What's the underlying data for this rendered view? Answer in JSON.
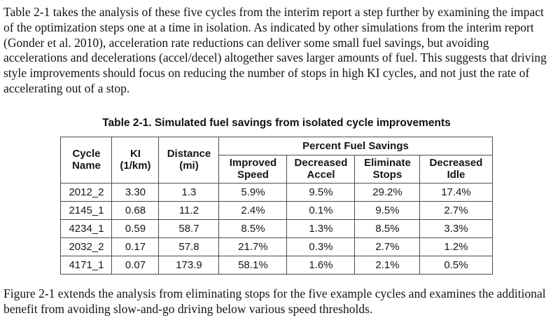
{
  "document": {
    "intro_paragraph": "Table 2-1 takes the analysis of these five cycles from the interim report a step further by examining the impact of the optimization steps one at a time in isolation. As indicated by other simulations from the interim report (Gonder et al. 2010), acceleration rate reductions can deliver some small fuel savings, but avoiding accelerations and decelerations (accel/decel) altogether saves larger amounts of fuel. This suggests that driving style improvements should focus on reducing the number of stops in high KI cycles, and not just the rate of accelerating out of a stop.",
    "closing_paragraph": "Figure 2-1 extends the analysis from eliminating stops for the five example cycles and examines the additional benefit from avoiding slow-and-go driving below various speed thresholds."
  },
  "table": {
    "title": "Table 2-1. Simulated fuel savings from isolated cycle improvements",
    "group_header": "Percent Fuel Savings",
    "headers": {
      "cycle_name": "Cycle\nName",
      "ki": "KI\n(1/km)",
      "distance": "Distance\n(mi)",
      "improved_speed": "Improved\nSpeed",
      "decreased_accel": "Decreased\nAccel",
      "eliminate_stops": "Eliminate\nStops",
      "decreased_idle": "Decreased\nIdle"
    },
    "rows": [
      {
        "cycle": "2012_2",
        "ki": "3.30",
        "distance": "1.3",
        "improved_speed": "5.9%",
        "decreased_accel": "9.5%",
        "eliminate_stops": "29.2%",
        "decreased_idle": "17.4%"
      },
      {
        "cycle": "2145_1",
        "ki": "0.68",
        "distance": "11.2",
        "improved_speed": "2.4%",
        "decreased_accel": "0.1%",
        "eliminate_stops": "9.5%",
        "decreased_idle": "2.7%"
      },
      {
        "cycle": "4234_1",
        "ki": "0.59",
        "distance": "58.7",
        "improved_speed": "8.5%",
        "decreased_accel": "1.3%",
        "eliminate_stops": "8.5%",
        "decreased_idle": "3.3%"
      },
      {
        "cycle": "2032_2",
        "ki": "0.17",
        "distance": "57.8",
        "improved_speed": "21.7%",
        "decreased_accel": "0.3%",
        "eliminate_stops": "2.7%",
        "decreased_idle": "1.2%"
      },
      {
        "cycle": "4171_1",
        "ki": "0.07",
        "distance": "173.9",
        "improved_speed": "58.1%",
        "decreased_accel": "1.6%",
        "eliminate_stops": "2.1%",
        "decreased_idle": "0.5%"
      }
    ]
  },
  "colors": {
    "text": "#1b1b1b",
    "table_border": "#4d4d4d",
    "background": "#ffffff"
  }
}
